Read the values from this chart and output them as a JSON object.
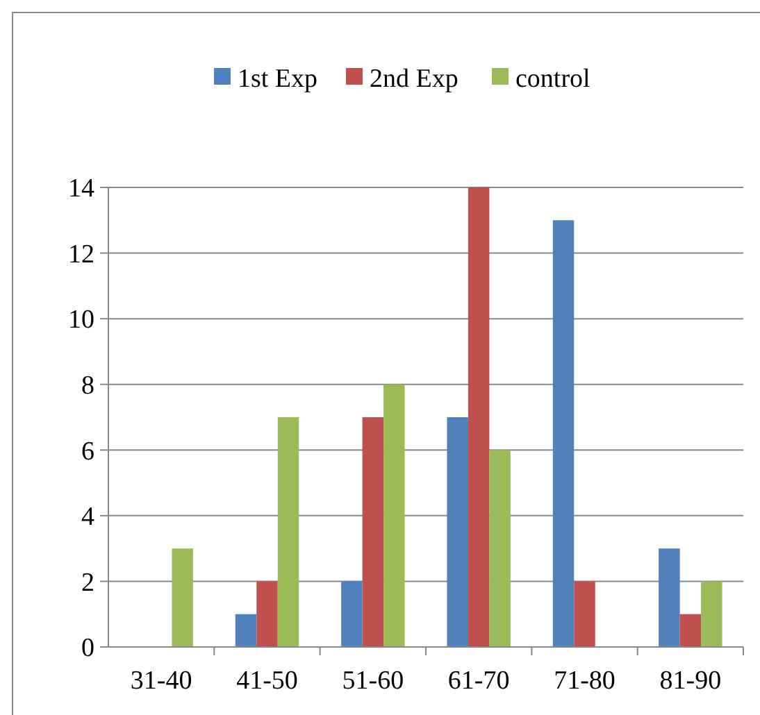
{
  "chart_data": {
    "type": "bar",
    "categories": [
      "31-40",
      "41-50",
      "51-60",
      "61-70",
      "71-80",
      "81-90"
    ],
    "series": [
      {
        "name": "1st Exp",
        "color": "#4f81bd",
        "values": [
          0,
          1,
          2,
          7,
          13,
          3
        ]
      },
      {
        "name": "2nd Exp",
        "color": "#c0504d",
        "values": [
          0,
          2,
          7,
          14,
          2,
          1
        ]
      },
      {
        "name": "control",
        "color": "#9bbb59",
        "values": [
          3,
          7,
          8,
          6,
          0,
          2
        ]
      }
    ],
    "ylim": [
      0,
      14
    ],
    "yticks": [
      0,
      2,
      4,
      6,
      8,
      10,
      12,
      14
    ],
    "grid": "y",
    "legend": "top"
  }
}
